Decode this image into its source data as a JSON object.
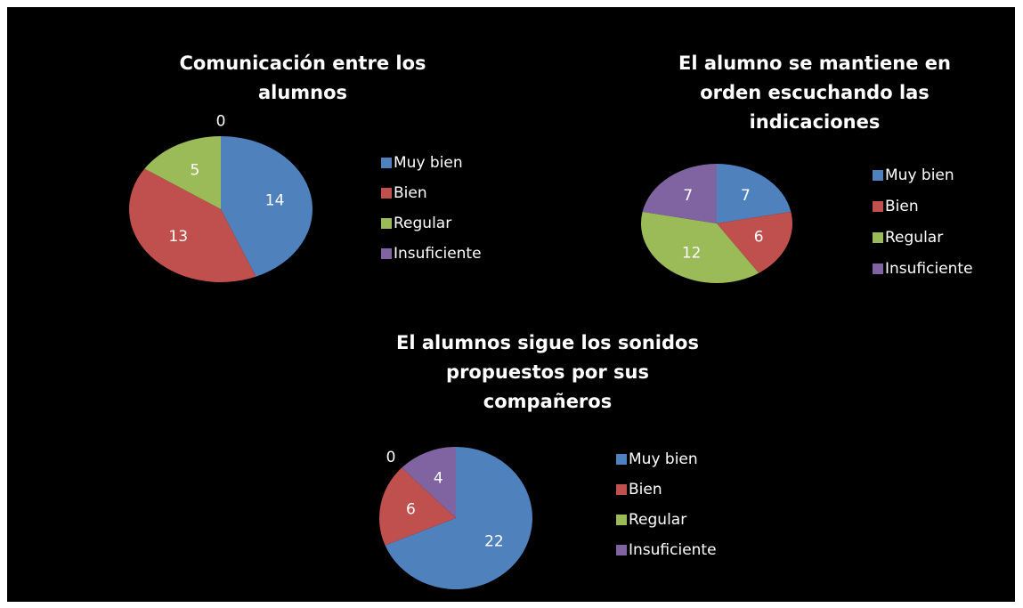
{
  "chart_data": [
    {
      "type": "pie",
      "title": [
        "Comunicación entre los",
        "alumnos"
      ],
      "categories": [
        "Muy bien",
        "Bien",
        "Regular",
        "Insuficiente"
      ],
      "values": [
        14,
        13,
        5,
        0
      ],
      "colors": [
        "#4f81bd",
        "#c0504d",
        "#9bbb59",
        "#8064a2"
      ],
      "legend": "right"
    },
    {
      "type": "pie",
      "title": [
        "El alumno se mantiene en",
        "orden escuchando las",
        "indicaciones"
      ],
      "categories": [
        "Muy bien",
        "Bien",
        "Regular",
        "Insuficiente"
      ],
      "values": [
        7,
        6,
        12,
        7
      ],
      "colors": [
        "#4f81bd",
        "#c0504d",
        "#9bbb59",
        "#8064a2"
      ],
      "legend": "right"
    },
    {
      "type": "pie",
      "title": [
        "El alumnos sigue los sonidos",
        "propuestos por sus",
        "compañeros"
      ],
      "categories": [
        "Muy bien",
        "Bien",
        "Regular",
        "Insuficiente"
      ],
      "values": [
        22,
        6,
        0,
        4
      ],
      "colors": [
        "#4f81bd",
        "#c0504d",
        "#9bbb59",
        "#8064a2"
      ],
      "legend": "right"
    }
  ]
}
